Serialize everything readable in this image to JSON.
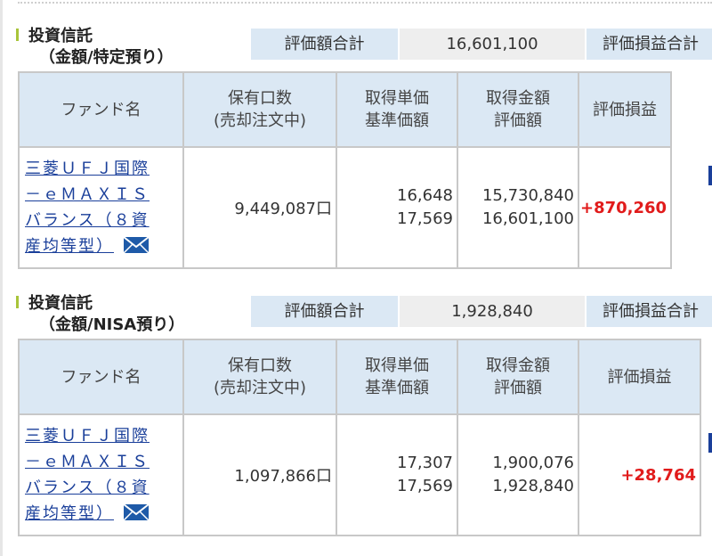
{
  "sections": [
    {
      "title": "投資信託",
      "subtitle": "（金額/特定預り）",
      "total_label": "評価額合計",
      "total_value": "16,601,100",
      "pl_label": "評価損益合計",
      "headers": {
        "fund": "ファンド名",
        "holding_1": "保有口数",
        "holding_2": "(売却注文中)",
        "unit_1": "取得単価",
        "unit_2": "基準価額",
        "amount_1": "取得金額",
        "amount_2": "評価額",
        "pl": "評価損益"
      },
      "row": {
        "fund_line1": "三菱ＵＦＪ国際",
        "fund_line2": "－ｅＭＡＸＩＳ",
        "fund_line3": "バランス（８資",
        "fund_line4": "産均等型）",
        "units": "9,449,087口",
        "acq_price": "16,648",
        "nav": "17,569",
        "acq_amount": "15,730,840",
        "value": "16,601,100",
        "pl": "+870,260"
      }
    },
    {
      "title": "投資信託",
      "subtitle": "（金額/NISA預り）",
      "total_label": "評価額合計",
      "total_value": "1,928,840",
      "pl_label": "評価損益合計",
      "headers": {
        "fund": "ファンド名",
        "holding_1": "保有口数",
        "holding_2": "(売却注文中)",
        "unit_1": "取得単価",
        "unit_2": "基準価額",
        "amount_1": "取得金額",
        "amount_2": "評価額",
        "pl": "評価損益"
      },
      "row": {
        "fund_line1": "三菱ＵＦＪ国際",
        "fund_line2": "－ｅＭＡＸＩＳ",
        "fund_line3": "バランス（８資",
        "fund_line4": "産均等型）",
        "units": "1,097,866口",
        "acq_price": "17,307",
        "nav": "17,569",
        "acq_amount": "1,900,076",
        "value": "1,928,840",
        "pl": "+28,764"
      }
    }
  ],
  "icons": {
    "mail": "envelope-icon"
  },
  "colors": {
    "header_bg": "#dbe8f4",
    "link": "#1a3f9a",
    "profit": "#e11b1b",
    "accent_bar": "#a8c43a"
  }
}
